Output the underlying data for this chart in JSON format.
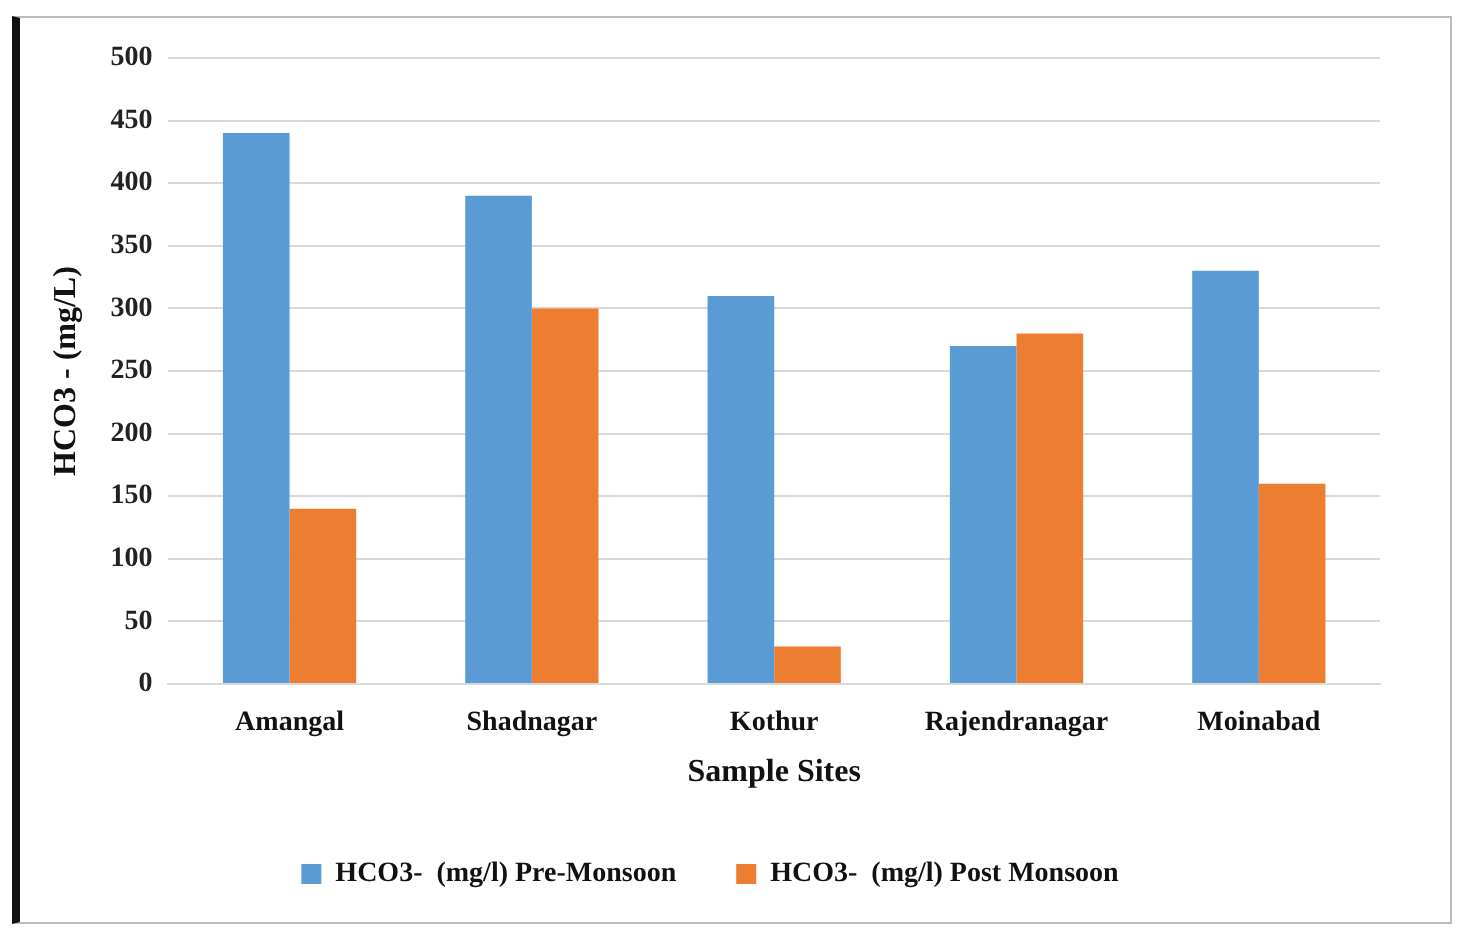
{
  "chart_data": {
    "type": "bar",
    "xlabel": "Sample Sites",
    "ylabel": "HCO3 - (mg/L)",
    "categories": [
      "Amangal",
      "Shadnagar",
      "Kothur",
      "Rajendranagar",
      "Moinabad"
    ],
    "series": [
      {
        "name": "HCO3-  (mg/l) Pre-Monsoon",
        "color": "#5b9bd5",
        "values": [
          440,
          390,
          310,
          270,
          330
        ]
      },
      {
        "name": "HCO3-  (mg/l) Post Monsoon",
        "color": "#ed7d31",
        "values": [
          140,
          300,
          30,
          280,
          160
        ]
      }
    ],
    "ylim": [
      0,
      500
    ],
    "yticks": [
      0,
      50,
      100,
      150,
      200,
      250,
      300,
      350,
      400,
      450,
      500
    ],
    "grid": "y",
    "legend": "bottom"
  }
}
